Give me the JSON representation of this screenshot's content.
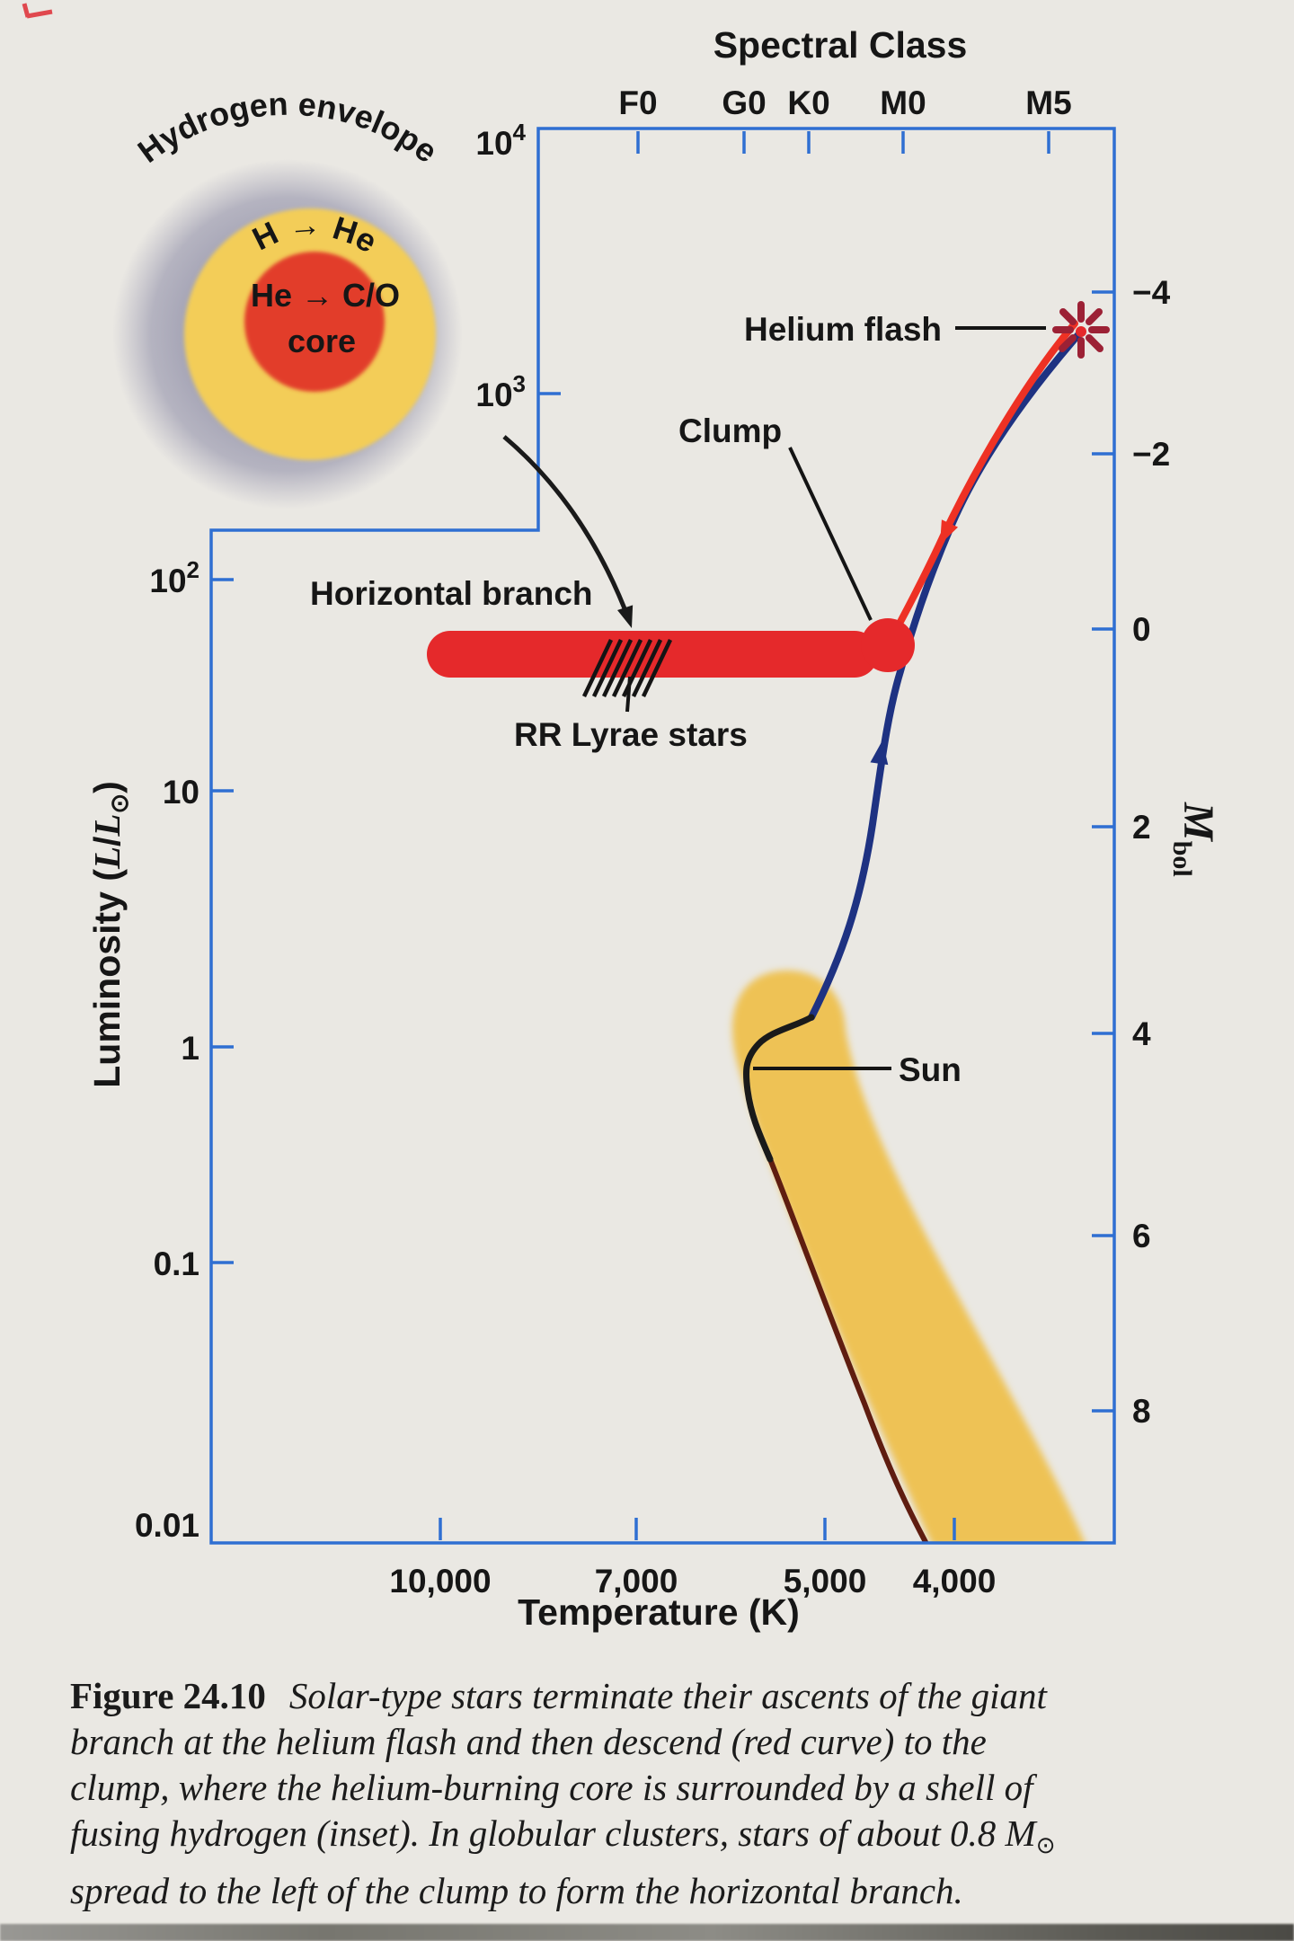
{
  "figure_caption": {
    "label": "Figure 24.10",
    "line1": "Solar-type stars terminate their ascents of the giant",
    "line2": "branch at the helium flash and then descend (red curve) to the",
    "line3": "clump, where the helium-burning core is surrounded by a shell of",
    "line4_pre": "fusing hydrogen (inset). In globular clusters, stars of about 0.8 M",
    "line4_sun_symbol": "⊙",
    "line5": "spread to the left of the clump to form the horizontal branch."
  },
  "axes": {
    "top": {
      "title": "Spectral Class",
      "ticks": [
        "F0",
        "G0",
        "K0",
        "M0",
        "M5"
      ]
    },
    "bottom": {
      "title": "Temperature (K)",
      "ticks": [
        "10,000",
        "7,000",
        "5,000",
        "4,000"
      ]
    },
    "left": {
      "title_pre": "Luminosity (",
      "title_L1": "L",
      "title_slash": "/",
      "title_L2": "L",
      "title_sun": "⊙",
      "title_post": ")",
      "ticks": [
        {
          "base": "10",
          "exp": "4"
        },
        {
          "base": "10",
          "exp": "3"
        },
        {
          "base": "10",
          "exp": "2"
        },
        {
          "base": "10",
          "exp": ""
        },
        {
          "base": "1",
          "exp": ""
        },
        {
          "base": "0.1",
          "exp": ""
        },
        {
          "base": "0.01",
          "exp": ""
        }
      ]
    },
    "right": {
      "title_M": "M",
      "title_sub": "bol",
      "ticks": [
        "−4",
        "−2",
        "0",
        "2",
        "4",
        "6",
        "8"
      ]
    }
  },
  "annotations": {
    "helium_flash": "Helium flash",
    "clump": "Clump",
    "horizontal_branch": "Horizontal branch",
    "rr_lyrae": "RR Lyrae stars",
    "sun": "Sun"
  },
  "inset": {
    "envelope_label": "Hydrogen envelope",
    "shell_label": "H → He",
    "core_label_line1": "He → C/O",
    "core_label_line2": "core"
  },
  "colors": {
    "axis_blue": "#2f6fd2",
    "track_blue": "#1e3282",
    "track_red": "#ee3124",
    "branch_red": "#e5292b",
    "flash_maroon": "#9c2135",
    "band_yellow": "#eec254",
    "band_edge_brown": "#5f1d10",
    "inset_gray": "#a3a2b4",
    "inset_yellow": "#f3cd58",
    "inset_red": "#e23c2c",
    "page_bg": "#eae8e3"
  },
  "chart_data": {
    "type": "line",
    "title": "Post-main-sequence evolution of a solar-type star (H-R diagram)",
    "x_axis": {
      "label": "Temperature (K)",
      "scale": "log",
      "direction": "decreasing to the right",
      "ticks": [
        10000,
        7000,
        5000,
        4000
      ]
    },
    "x_axis_top": {
      "label": "Spectral Class",
      "ticks": [
        "F0",
        "G0",
        "K0",
        "M0",
        "M5"
      ]
    },
    "y_axis": {
      "label": "Luminosity (L/L⊙)",
      "scale": "log",
      "ticks": [
        10000,
        1000,
        100,
        10,
        1,
        0.1,
        0.01
      ],
      "ylim": [
        0.01,
        10000
      ]
    },
    "y_axis_right": {
      "label": "Mbol",
      "ticks": [
        -4,
        -2,
        0,
        2,
        4,
        6,
        8
      ]
    },
    "grid": false,
    "legend": false,
    "series": [
      {
        "name": "Giant-branch ascent (blue curve, arrow pointing up)",
        "color": "dark blue",
        "points_T_L": [
          [
            5500,
            1.3
          ],
          [
            5200,
            3
          ],
          [
            5000,
            8
          ],
          [
            4800,
            25
          ],
          [
            4500,
            90
          ],
          [
            4100,
            300
          ],
          [
            3600,
            1000
          ],
          [
            3200,
            2100
          ]
        ]
      },
      {
        "name": "Descent after helium flash (red curve, arrow pointing down to clump)",
        "color": "red",
        "points_T_L": [
          [
            3250,
            2100
          ],
          [
            3700,
            550
          ],
          [
            4200,
            140
          ],
          [
            4500,
            55
          ]
        ]
      },
      {
        "name": "Sun's track leaving the main sequence (black hook)",
        "color": "black",
        "points_T_L": [
          [
            5560,
            0.3
          ],
          [
            5830,
            0.85
          ],
          [
            5770,
            1.1
          ],
          [
            5150,
            1.3
          ]
        ]
      },
      {
        "name": "Lower main-sequence edge line",
        "color": "dark brown",
        "points_T_L": [
          [
            5560,
            0.3
          ],
          [
            4800,
            0.05
          ],
          [
            4000,
            0.015
          ],
          [
            3700,
            0.01
          ]
        ]
      }
    ],
    "bands": [
      {
        "name": "Main-sequence / giant region band",
        "color": "yellow-orange",
        "from_T_L": [
          5500,
          2
        ],
        "to_T_L": [
          3400,
          0.01
        ]
      },
      {
        "name": "Horizontal branch bar",
        "color": "red",
        "L": 55,
        "T_range": [
          10200,
          4600
        ]
      },
      {
        "name": "RR Lyrae instability strip (hatched)",
        "L": 55,
        "T_range": [
          7600,
          6700
        ]
      }
    ],
    "annotations": [
      {
        "label": "Helium flash",
        "T": 3200,
        "L": 2100,
        "marker": "starburst"
      },
      {
        "label": "Clump",
        "T": 4500,
        "L": 50,
        "marker": "filled red circle"
      },
      {
        "label": "Sun",
        "T": 5800,
        "L": 0.9
      },
      {
        "label": "RR Lyrae stars",
        "T_range": [
          7600,
          6700
        ],
        "L": 55
      },
      {
        "label": "Horizontal branch",
        "T_range": [
          10200,
          4600
        ],
        "L": 55
      }
    ]
  }
}
